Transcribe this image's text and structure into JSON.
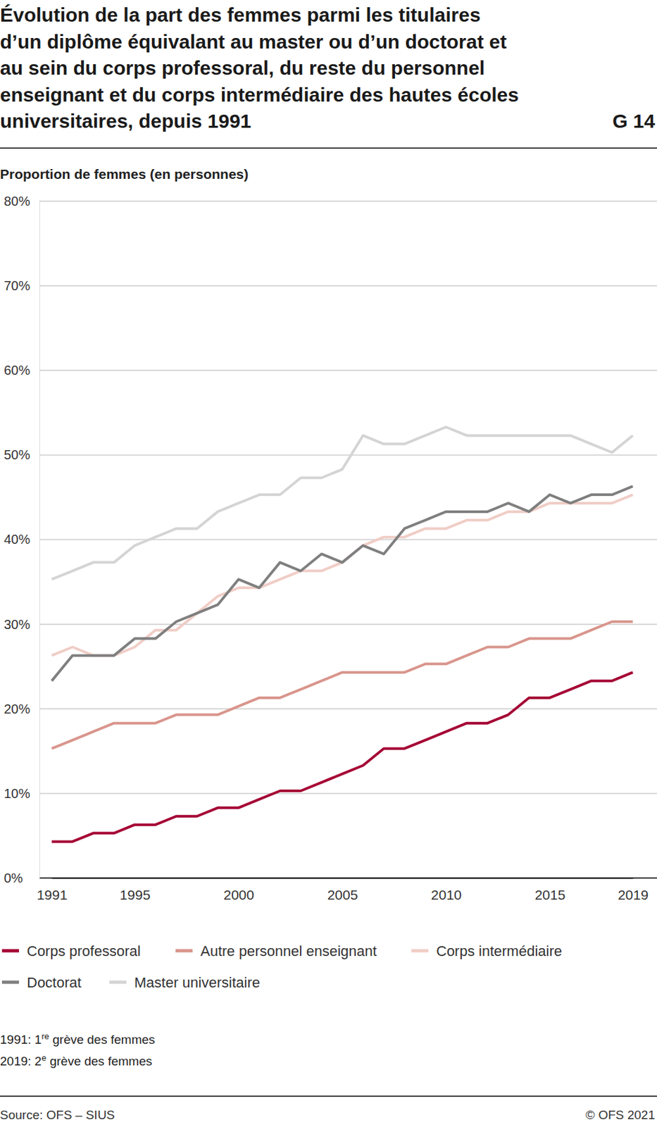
{
  "chart_data": {
    "type": "line",
    "title": [
      "Évolution de la part des femmes parmi les titulaires",
      "d’un diplôme équivalant au master ou d’un doctorat et",
      "au sein du corps professoral, du reste du personnel",
      "enseignant et du corps intermédiaire des hautes écoles",
      "universitaires, depuis 1991"
    ],
    "figure_label": "G 14",
    "y_label": "Proportion de femmes (en personnes)",
    "x": [
      1991,
      1992,
      1993,
      1994,
      1995,
      1996,
      1997,
      1998,
      1999,
      2000,
      2001,
      2002,
      2003,
      2004,
      2005,
      2006,
      2007,
      2008,
      2009,
      2010,
      2011,
      2012,
      2013,
      2014,
      2015,
      2016,
      2017,
      2018,
      2019
    ],
    "series": [
      {
        "name": "Corps professoral",
        "color": "#a50034",
        "values": [
          4.3,
          4.3,
          5.3,
          5.3,
          6.3,
          6.3,
          7.3,
          7.3,
          8.3,
          8.3,
          9.3,
          10.3,
          10.3,
          11.3,
          12.3,
          13.3,
          15.3,
          15.3,
          16.3,
          17.3,
          18.3,
          18.3,
          19.3,
          21.3,
          21.3,
          22.3,
          23.3,
          23.3,
          24.3
        ]
      },
      {
        "name": "Autre personnel enseignant",
        "color": "#d9958c",
        "values": [
          15.3,
          16.3,
          17.3,
          18.3,
          18.3,
          18.3,
          19.3,
          19.3,
          19.3,
          20.3,
          21.3,
          21.3,
          22.3,
          23.3,
          24.3,
          24.3,
          24.3,
          24.3,
          25.3,
          25.3,
          26.3,
          27.3,
          27.3,
          28.3,
          28.3,
          28.3,
          29.3,
          30.3,
          30.3
        ]
      },
      {
        "name": "Corps intermédiaire",
        "color": "#f0cdc6",
        "values": [
          26.3,
          27.3,
          26.3,
          26.3,
          27.3,
          29.3,
          29.3,
          31.3,
          33.3,
          34.3,
          34.3,
          35.3,
          36.3,
          36.3,
          37.3,
          39.3,
          40.3,
          40.3,
          41.3,
          41.3,
          42.3,
          42.3,
          43.3,
          43.3,
          44.3,
          44.3,
          44.3,
          44.3,
          45.3
        ]
      },
      {
        "name": "Doctorat",
        "color": "#7f7f7f",
        "values": [
          23.3,
          26.3,
          26.3,
          26.3,
          28.3,
          28.3,
          30.3,
          31.3,
          32.3,
          35.3,
          34.3,
          37.3,
          36.3,
          38.3,
          37.3,
          39.3,
          38.3,
          41.3,
          42.3,
          43.3,
          43.3,
          43.3,
          44.3,
          43.3,
          45.3,
          44.3,
          45.3,
          45.3,
          46.3
        ]
      },
      {
        "name": "Master universitaire",
        "color": "#d4d4d4",
        "values": [
          35.3,
          36.3,
          37.3,
          37.3,
          39.3,
          40.3,
          41.3,
          41.3,
          43.3,
          44.3,
          45.3,
          45.3,
          47.3,
          47.3,
          48.3,
          52.3,
          51.3,
          51.3,
          52.3,
          53.3,
          52.3,
          52.3,
          52.3,
          52.3,
          52.3,
          52.3,
          51.3,
          50.3,
          52.3
        ]
      }
    ],
    "xlim": [
      1991,
      2019
    ],
    "xticks": [
      1991,
      1995,
      2000,
      2005,
      2010,
      2015,
      2019
    ],
    "ylim": [
      0,
      80
    ],
    "yticks": [
      {
        "value": 0,
        "label": "0%"
      },
      {
        "value": 10,
        "label": "10%"
      },
      {
        "value": 20,
        "label": "20%"
      },
      {
        "value": 30,
        "label": "30%"
      },
      {
        "value": 40,
        "label": "40%"
      },
      {
        "value": 50,
        "label": "50%"
      },
      {
        "value": 60,
        "label": "60%"
      },
      {
        "value": 70,
        "label": "70%"
      },
      {
        "value": 80,
        "label": "80%"
      }
    ],
    "grid": true,
    "legend": "bottom",
    "annotations": [
      [
        "1991: 1",
        "re",
        " grève des femmes"
      ],
      [
        "2019: 2",
        "e",
        " grève des femmes"
      ]
    ],
    "source": "Source: OFS – SIUS",
    "copyright": "© OFS 2021"
  }
}
